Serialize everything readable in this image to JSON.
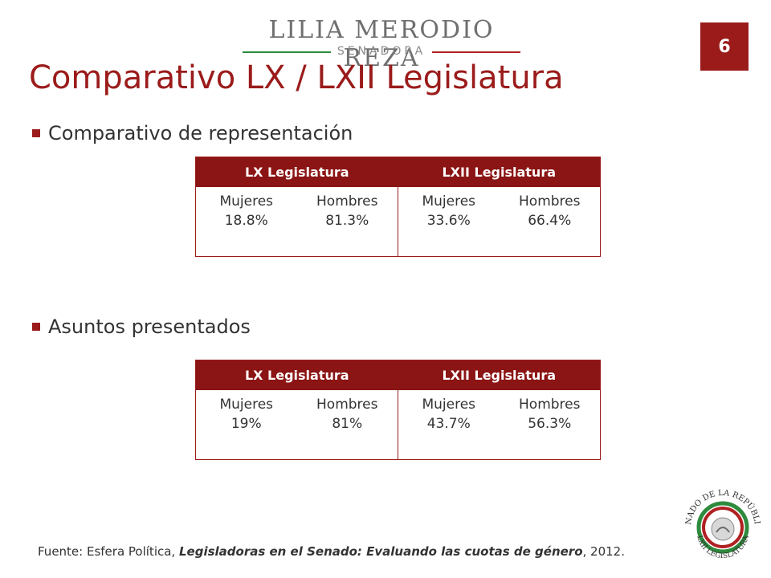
{
  "header": {
    "logo_name": "LILIA MERODIO REZA",
    "logo_sub": "SENADORA",
    "page_number": "6"
  },
  "title": "Comparativo LX / LXII Legislatura",
  "sections": [
    {
      "heading": "Comparativo de representación",
      "table": {
        "columns": [
          "LX Legislatura",
          "LXII Legislatura"
        ],
        "groups": [
          [
            {
              "label": "Mujeres",
              "value": "18.8%"
            },
            {
              "label": "Hombres",
              "value": "81.3%"
            }
          ],
          [
            {
              "label": "Mujeres",
              "value": "33.6%"
            },
            {
              "label": "Hombres",
              "value": "66.4%"
            }
          ]
        ]
      }
    },
    {
      "heading": "Asuntos presentados",
      "table": {
        "columns": [
          "LX Legislatura",
          "LXII Legislatura"
        ],
        "groups": [
          [
            {
              "label": "Mujeres",
              "value": "19%"
            },
            {
              "label": "Hombres",
              "value": "81%"
            }
          ],
          [
            {
              "label": "Mujeres",
              "value": "43.7%"
            },
            {
              "label": "Hombres",
              "value": "56.3%"
            }
          ]
        ]
      }
    }
  ],
  "source": {
    "prefix": "Fuente: Esfera Política, ",
    "emphasis": "Legisladoras en el Senado: Evaluando las cuotas de género",
    "suffix": ", 2012."
  },
  "seal": {
    "top_text": "SENADO DE LA REPÚBLICA",
    "inner_text": "ESTADOS UNIDOS MEXICANOS",
    "bottom_text": "LXII LEGISLATURA"
  },
  "colors": {
    "accent": "#9b1b1b",
    "header_bg": "#8b1414",
    "green": "#2e8b3d"
  }
}
